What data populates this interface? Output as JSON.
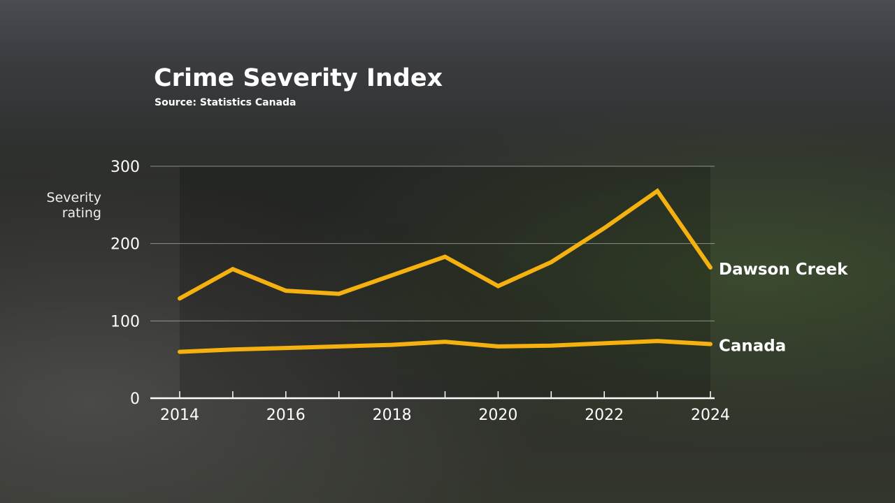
{
  "chart_data": {
    "type": "line",
    "title": "Crime Severity Index",
    "subtitle": "Source: Statistics Canada",
    "xlabel": "",
    "ylabel": "Severity rating",
    "x": [
      2014,
      2015,
      2016,
      2017,
      2018,
      2019,
      2020,
      2021,
      2022,
      2023,
      2024
    ],
    "x_ticks": [
      "2014",
      "2016",
      "2018",
      "2020",
      "2022",
      "2024"
    ],
    "y_ticks": [
      "0",
      "100",
      "200",
      "300"
    ],
    "ylim": [
      0,
      300
    ],
    "grid": true,
    "series": [
      {
        "name": "Dawson Creek",
        "values": [
          129,
          167,
          139,
          135,
          159,
          183,
          145,
          176,
          220,
          268,
          169
        ],
        "color": "#f5b10f"
      },
      {
        "name": "Canada",
        "values": [
          60,
          63,
          65,
          67,
          69,
          73,
          67,
          68,
          71,
          74,
          70
        ],
        "color": "#f5b10f"
      }
    ]
  }
}
